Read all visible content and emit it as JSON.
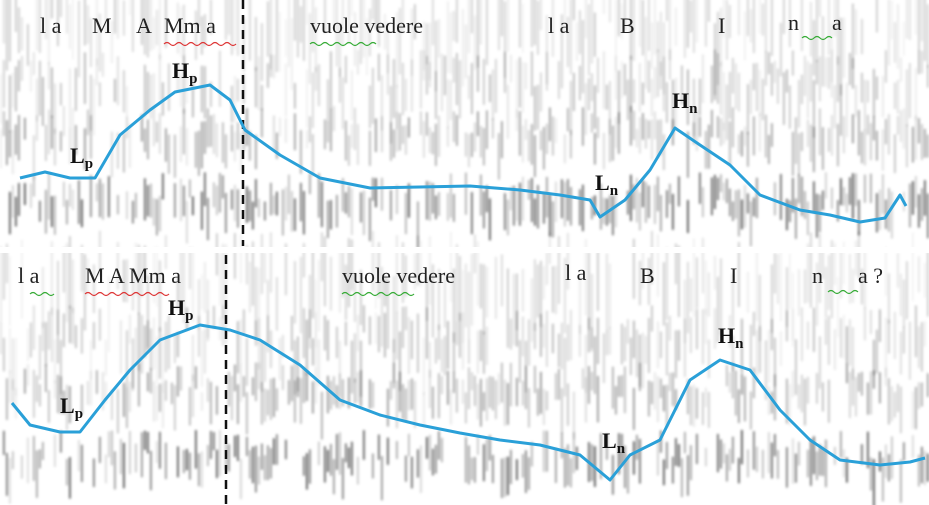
{
  "panels": [
    {
      "segments": [
        "l a",
        "M",
        "A",
        "Mm a",
        "vuole vedere",
        "l a",
        "B",
        "I",
        "n",
        "a"
      ],
      "tones": [
        {
          "base": "L",
          "sub": "p"
        },
        {
          "base": "H",
          "sub": "p"
        },
        {
          "base": "L",
          "sub": "n"
        },
        {
          "base": "H",
          "sub": "n"
        }
      ]
    },
    {
      "segments": [
        "l a",
        "M A Mm a",
        "vuole vedere",
        "l a",
        "B",
        "I",
        "n",
        "a ?"
      ],
      "tones": [
        {
          "base": "L",
          "sub": "p"
        },
        {
          "base": "H",
          "sub": "p"
        },
        {
          "base": "L",
          "sub": "n"
        },
        {
          "base": "H",
          "sub": "n"
        }
      ]
    }
  ]
}
